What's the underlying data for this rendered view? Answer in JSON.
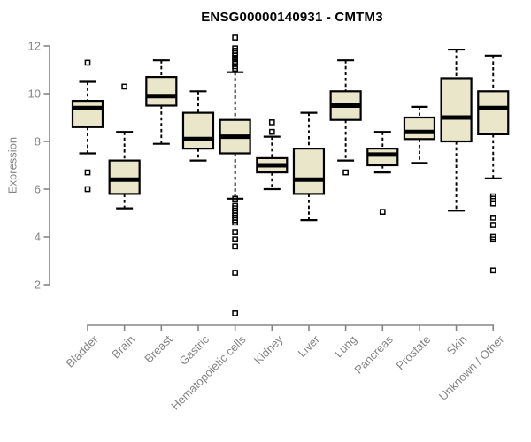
{
  "chart_data": {
    "type": "boxplot",
    "title": "ENSG00000140931 - CMTM3",
    "ylabel": "Expression",
    "xlabel": "",
    "yticks": [
      2,
      4,
      6,
      8,
      10,
      12
    ],
    "ylim": [
      0.3,
      12.8
    ],
    "grid": false,
    "legend": false,
    "categories": [
      "Bladder",
      "Brain",
      "Breast",
      "Gastric",
      "Hematopoietic cells",
      "Kidney",
      "Liver",
      "Lung",
      "Pancreas",
      "Prostate",
      "Skin",
      "Unknown / Other"
    ],
    "series": [
      {
        "name": "Bladder",
        "whisker_low": 7.5,
        "q1": 8.6,
        "median": 9.4,
        "q3": 9.7,
        "whisker_high": 10.5,
        "outliers": [
          11.3,
          6.7,
          6.0
        ]
      },
      {
        "name": "Brain",
        "whisker_low": 5.2,
        "q1": 5.8,
        "median": 6.4,
        "q3": 7.2,
        "whisker_high": 8.4,
        "outliers": [
          10.3
        ]
      },
      {
        "name": "Breast",
        "whisker_low": 7.9,
        "q1": 9.5,
        "median": 9.9,
        "q3": 10.7,
        "whisker_high": 11.4,
        "outliers": []
      },
      {
        "name": "Gastric",
        "whisker_low": 7.2,
        "q1": 7.7,
        "median": 8.1,
        "q3": 9.2,
        "whisker_high": 10.1,
        "outliers": []
      },
      {
        "name": "Hematopoietic cells",
        "whisker_low": 5.6,
        "q1": 7.5,
        "median": 8.2,
        "q3": 8.9,
        "whisker_high": 10.9,
        "outliers": [
          12.35,
          11.9,
          11.8,
          11.7,
          11.6,
          11.5,
          11.45,
          11.35,
          11.25,
          11.15,
          11.05,
          5.6,
          5.3,
          5.2,
          5.1,
          5.0,
          4.9,
          4.8,
          4.7,
          4.6,
          4.2,
          3.9,
          3.6,
          2.5,
          0.8
        ]
      },
      {
        "name": "Kidney",
        "whisker_low": 6.0,
        "q1": 6.7,
        "median": 7.0,
        "q3": 7.3,
        "whisker_high": 8.2,
        "outliers": [
          8.8,
          8.4
        ]
      },
      {
        "name": "Liver",
        "whisker_low": 4.7,
        "q1": 5.8,
        "median": 6.4,
        "q3": 7.7,
        "whisker_high": 9.2,
        "outliers": []
      },
      {
        "name": "Lung",
        "whisker_low": 7.2,
        "q1": 8.9,
        "median": 9.5,
        "q3": 10.1,
        "whisker_high": 11.4,
        "outliers": [
          6.7
        ]
      },
      {
        "name": "Pancreas",
        "whisker_low": 6.7,
        "q1": 7.0,
        "median": 7.45,
        "q3": 7.7,
        "whisker_high": 8.4,
        "outliers": [
          5.05
        ]
      },
      {
        "name": "Prostate",
        "whisker_low": 7.1,
        "q1": 8.1,
        "median": 8.4,
        "q3": 9.0,
        "whisker_high": 9.45,
        "outliers": []
      },
      {
        "name": "Skin",
        "whisker_low": 5.1,
        "q1": 8.0,
        "median": 9.0,
        "q3": 10.65,
        "whisker_high": 11.85,
        "outliers": []
      },
      {
        "name": "Unknown / Other",
        "whisker_low": 6.45,
        "q1": 8.3,
        "median": 9.4,
        "q3": 10.1,
        "whisker_high": 11.6,
        "outliers": [
          5.7,
          5.6,
          5.4,
          4.8,
          4.5,
          4.0,
          3.9,
          2.6
        ]
      }
    ],
    "colors": {
      "box_fill": "#EAE6C9",
      "box_border": "#000000",
      "median": "#000000",
      "whisker": "#000000",
      "outlier": "#000000",
      "axis": "#858585",
      "tick_label": "#848484",
      "title": "#000000",
      "background": "#FFFFFF"
    }
  }
}
